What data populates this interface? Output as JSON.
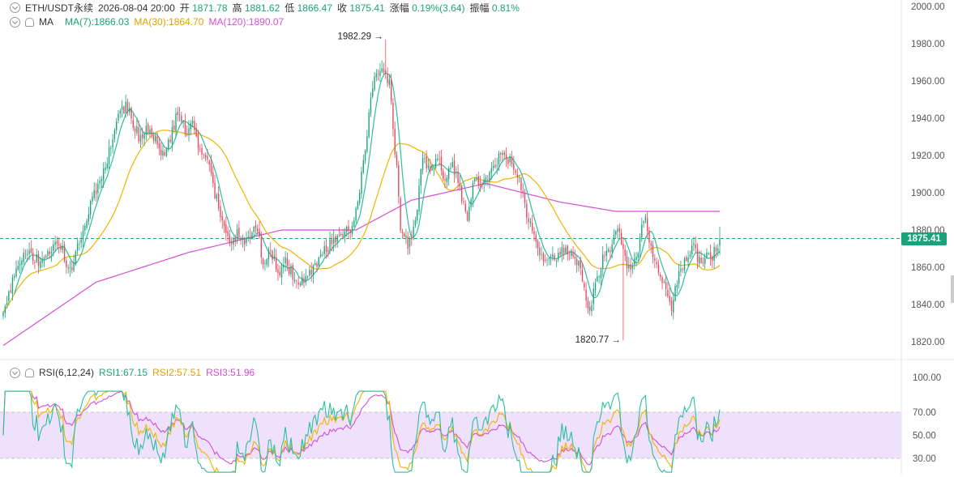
{
  "header": {
    "symbol": "ETH/USDT永续",
    "datetime": "2026-08-04 20:00",
    "open_label": "开",
    "open": "1871.78",
    "high_label": "高",
    "high": "1881.62",
    "low_label": "低",
    "low": "1866.47",
    "close_label": "收",
    "close": "1875.41",
    "change_label": "涨幅",
    "change": "0.19%(3.64)",
    "amplitude_label": "振幅",
    "amplitude": "0.81%"
  },
  "ma_legend": {
    "label": "MA",
    "ma7": "MA(7):1866.03",
    "ma30": "MA(30):1864.70",
    "ma120": "MA(120):1890.07"
  },
  "rsi_legend": {
    "label": "RSI(6,12,24)",
    "rsi1": "RSI1:67.15",
    "rsi2": "RSI2:57.51",
    "rsi3": "RSI3:51.96"
  },
  "current_price": "1875.41",
  "colors": {
    "up": "#1aa37a",
    "down": "#e8485c",
    "ma7": "#2bbfa0",
    "ma30": "#f0b400",
    "ma120": "#d44fd4",
    "rsi_band": "#efe0fb"
  },
  "chart_data": [
    {
      "type": "candlestick",
      "y_axis_ticks": [
        "2000.00",
        "1980.00",
        "1960.00",
        "1940.00",
        "1920.00",
        "1900.00",
        "1880.00",
        "1860.00",
        "1840.00",
        "1820.00"
      ],
      "ylim": [
        1815,
        2001
      ],
      "annotations": [
        {
          "text": "1982.29 →",
          "value": 1982.29
        },
        {
          "text": "1820.77 →",
          "value": 1820.77
        }
      ],
      "anchors": [
        [
          0,
          1836
        ],
        [
          8,
          1862
        ],
        [
          14,
          1868
        ],
        [
          20,
          1862
        ],
        [
          28,
          1872
        ],
        [
          32,
          1868
        ],
        [
          36,
          1858
        ],
        [
          42,
          1878
        ],
        [
          46,
          1890
        ],
        [
          50,
          1902
        ],
        [
          54,
          1910
        ],
        [
          58,
          1925
        ],
        [
          62,
          1940
        ],
        [
          66,
          1948
        ],
        [
          70,
          1938
        ],
        [
          74,
          1928
        ],
        [
          78,
          1935
        ],
        [
          82,
          1930
        ],
        [
          86,
          1920
        ],
        [
          90,
          1928
        ],
        [
          94,
          1945
        ],
        [
          98,
          1932
        ],
        [
          102,
          1936
        ],
        [
          106,
          1924
        ],
        [
          110,
          1918
        ],
        [
          114,
          1900
        ],
        [
          118,
          1882
        ],
        [
          122,
          1872
        ],
        [
          126,
          1878
        ],
        [
          130,
          1872
        ],
        [
          134,
          1880
        ],
        [
          138,
          1875
        ],
        [
          140,
          1860
        ],
        [
          144,
          1870
        ],
        [
          148,
          1858
        ],
        [
          152,
          1862
        ],
        [
          156,
          1856
        ],
        [
          160,
          1852
        ],
        [
          164,
          1855
        ],
        [
          168,
          1860
        ],
        [
          172,
          1868
        ],
        [
          176,
          1872
        ],
        [
          180,
          1878
        ],
        [
          184,
          1880
        ],
        [
          188,
          1882
        ],
        [
          192,
          1900
        ],
        [
          194,
          1918
        ],
        [
          196,
          1932
        ],
        [
          198,
          1950
        ],
        [
          200,
          1962
        ],
        [
          202,
          1964
        ],
        [
          204,
          1968
        ],
        [
          206,
          1962
        ],
        [
          208,
          1958
        ],
        [
          210,
          1935
        ],
        [
          212,
          1912
        ],
        [
          214,
          1880
        ],
        [
          216,
          1874
        ],
        [
          220,
          1872
        ],
        [
          222,
          1885
        ],
        [
          226,
          1918
        ],
        [
          230,
          1912
        ],
        [
          234,
          1920
        ],
        [
          238,
          1905
        ],
        [
          242,
          1915
        ],
        [
          246,
          1902
        ],
        [
          250,
          1888
        ],
        [
          254,
          1910
        ],
        [
          258,
          1902
        ],
        [
          262,
          1912
        ],
        [
          266,
          1918
        ],
        [
          270,
          1922
        ],
        [
          274,
          1915
        ],
        [
          278,
          1910
        ],
        [
          282,
          1888
        ],
        [
          286,
          1878
        ],
        [
          290,
          1865
        ],
        [
          294,
          1862
        ],
        [
          298,
          1866
        ],
        [
          302,
          1868
        ],
        [
          306,
          1866
        ],
        [
          310,
          1862
        ],
        [
          312,
          1850
        ],
        [
          316,
          1838
        ],
        [
          320,
          1852
        ],
        [
          324,
          1868
        ],
        [
          328,
          1872
        ],
        [
          332,
          1880
        ],
        [
          336,
          1858
        ],
        [
          340,
          1862
        ],
        [
          344,
          1880
        ],
        [
          346,
          1888
        ],
        [
          348,
          1875
        ],
        [
          352,
          1862
        ],
        [
          356,
          1852
        ],
        [
          358,
          1842
        ],
        [
          360,
          1838
        ],
        [
          364,
          1858
        ],
        [
          368,
          1866
        ],
        [
          372,
          1870
        ],
        [
          376,
          1862
        ],
        [
          380,
          1866
        ],
        [
          384,
          1868
        ],
        [
          386,
          1875
        ]
      ],
      "moving_averages": [
        {
          "name": "MA(7)",
          "value": 1866.03
        },
        {
          "name": "MA(30)",
          "value": 1864.7
        },
        {
          "name": "MA(120)",
          "value": 1890.07
        }
      ],
      "ma120_path": [
        [
          0,
          1818
        ],
        [
          50,
          1852
        ],
        [
          100,
          1868
        ],
        [
          150,
          1880
        ],
        [
          190,
          1880
        ],
        [
          220,
          1896
        ],
        [
          260,
          1905
        ],
        [
          280,
          1900
        ],
        [
          300,
          1895
        ],
        [
          330,
          1890
        ],
        [
          386,
          1890
        ]
      ]
    },
    {
      "type": "line",
      "name": "RSI(6,12,24)",
      "y_axis_ticks": [
        "100.00",
        "70.00",
        "50.00",
        "30.00"
      ],
      "ylim": [
        0,
        100
      ],
      "band": [
        30,
        70
      ],
      "series": [
        {
          "name": "RSI1",
          "last": 67.15
        },
        {
          "name": "RSI2",
          "last": 57.51
        },
        {
          "name": "RSI3",
          "last": 51.96
        }
      ]
    }
  ]
}
